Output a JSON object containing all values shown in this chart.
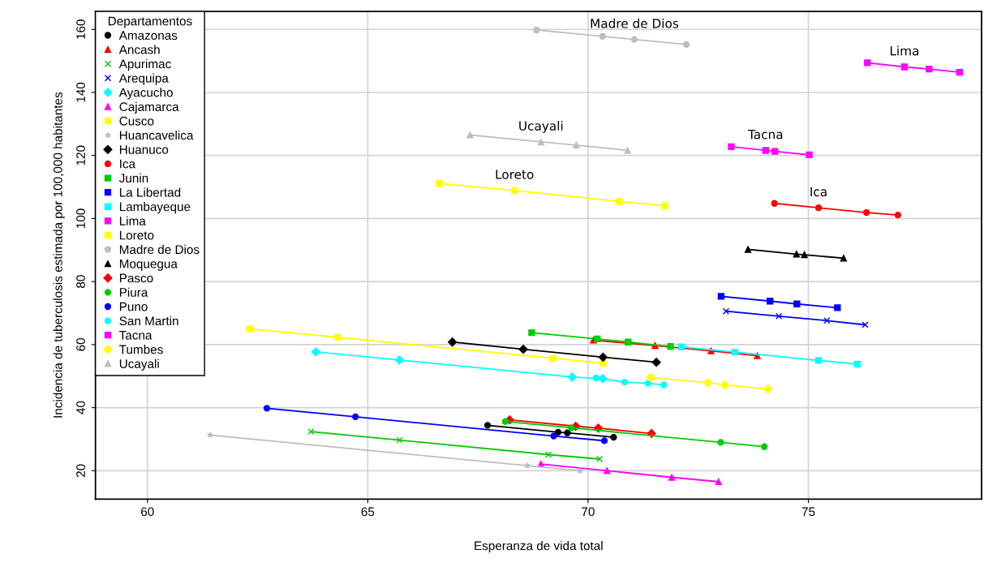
{
  "chart_data": {
    "type": "line",
    "xlabel": "Esperanza de vida total",
    "ylabel": "Incidencia de tuberculosis estimada por 100,000 habitantes",
    "legend_title": "Departamentos",
    "legend": "top left",
    "grid": true,
    "xlim": [
      58.82,
      78.93
    ],
    "ylim": [
      11.0,
      165.7
    ],
    "xticks": [
      60,
      65,
      70,
      75
    ],
    "yticks": [
      20,
      40,
      60,
      80,
      100,
      120,
      140,
      160
    ],
    "series": [
      {
        "name": "Amazonas",
        "color": "#000000",
        "marker": "circle",
        "x": [
          67.72,
          69.32,
          69.53,
          70.58
        ],
        "values": [
          34.4,
          32.2,
          32.0,
          30.6
        ]
      },
      {
        "name": "Ancash",
        "color": "#ff0000",
        "marker": "triangle",
        "x": [
          70.12,
          71.52,
          72.79,
          73.84
        ],
        "values": [
          61.4,
          59.7,
          58.0,
          56.5
        ]
      },
      {
        "name": "Apurimac",
        "color": "#00cd00",
        "marker": "cross",
        "x": [
          63.71,
          65.72,
          69.1,
          70.26
        ],
        "values": [
          32.4,
          29.7,
          25.1,
          23.7
        ]
      },
      {
        "name": "Arequipa",
        "color": "#0000ff",
        "marker": "cross",
        "x": [
          73.13,
          74.33,
          75.42,
          76.29
        ],
        "values": [
          70.6,
          69.0,
          67.6,
          66.3
        ]
      },
      {
        "name": "Ayacucho",
        "color": "#00ffff",
        "marker": "diamond",
        "x": [
          63.82,
          65.72,
          69.64,
          70.33
        ],
        "values": [
          57.7,
          55.1,
          49.7,
          49.2
        ]
      },
      {
        "name": "Cajamarca",
        "color": "#ff00ff",
        "marker": "triangle",
        "x": [
          68.93,
          70.43,
          71.9,
          72.96
        ],
        "values": [
          22.1,
          20.0,
          17.9,
          16.5
        ]
      },
      {
        "name": "Cusco",
        "color": "#ffff00",
        "marker": "square",
        "x": [
          62.32,
          64.32,
          69.2,
          70.34
        ],
        "values": [
          65.0,
          62.3,
          55.7,
          54.1
        ]
      },
      {
        "name": "Huancavelica",
        "color": "#bebebe",
        "marker": "star",
        "x": [
          61.42,
          68.62,
          69.82
        ],
        "values": [
          31.3,
          21.6,
          20.0
        ]
      },
      {
        "name": "Huanuco",
        "color": "#000000",
        "marker": "diamond",
        "x": [
          66.92,
          68.53,
          70.34,
          71.55
        ],
        "values": [
          60.8,
          58.5,
          56.0,
          54.4
        ]
      },
      {
        "name": "Ica",
        "color": "#ff0000",
        "marker": "circle",
        "x": [
          74.23,
          75.23,
          76.32,
          77.03
        ],
        "values": [
          104.8,
          103.4,
          101.9,
          101.1
        ]
      },
      {
        "name": "Junin",
        "color": "#00cd00",
        "marker": "square",
        "x": [
          68.72,
          70.21,
          70.91,
          71.87
        ],
        "values": [
          63.8,
          61.8,
          60.8,
          59.4
        ]
      },
      {
        "name": "La Libertad",
        "color": "#0000ff",
        "marker": "square",
        "x": [
          73.02,
          74.13,
          74.74,
          75.66
        ],
        "values": [
          75.3,
          73.8,
          72.9,
          71.7
        ]
      },
      {
        "name": "Lambayeque",
        "color": "#00ffff",
        "marker": "square",
        "x": [
          72.12,
          73.33,
          75.23,
          76.11
        ],
        "values": [
          59.3,
          57.6,
          55.0,
          53.8
        ]
      },
      {
        "name": "Lima",
        "color": "#ff00ff",
        "marker": "square",
        "x": [
          76.34,
          77.18,
          77.74,
          78.43
        ],
        "values": [
          149.4,
          148.1,
          147.4,
          146.4
        ]
      },
      {
        "name": "Loreto",
        "color": "#ffff00",
        "marker": "square",
        "x": [
          66.62,
          68.33,
          70.71,
          71.75
        ],
        "values": [
          111.1,
          108.9,
          105.4,
          104.0
        ]
      },
      {
        "name": "Madre de Dios",
        "color": "#bebebe",
        "marker": "circle",
        "x": [
          68.83,
          70.33,
          71.05,
          72.23
        ],
        "values": [
          159.8,
          157.8,
          156.8,
          155.2
        ]
      },
      {
        "name": "Moquegua",
        "color": "#000000",
        "marker": "triangle",
        "x": [
          73.63,
          74.73,
          74.91,
          75.8
        ],
        "values": [
          90.2,
          88.7,
          88.5,
          87.4
        ]
      },
      {
        "name": "Pasco",
        "color": "#ff0000",
        "marker": "diamond",
        "x": [
          68.22,
          69.72,
          70.23,
          71.44
        ],
        "values": [
          36.1,
          34.1,
          33.5,
          31.8
        ]
      },
      {
        "name": "Piura",
        "color": "#00cd00",
        "marker": "circle",
        "x": [
          68.12,
          69.62,
          73.01,
          74.0
        ],
        "values": [
          35.6,
          33.6,
          29.0,
          27.6
        ]
      },
      {
        "name": "Puno",
        "color": "#0000ff",
        "marker": "circle",
        "x": [
          62.71,
          64.72,
          69.22,
          70.37
        ],
        "values": [
          39.8,
          37.1,
          31.0,
          29.5
        ]
      },
      {
        "name": "San Martin",
        "color": "#00ffff",
        "marker": "circle",
        "x": [
          70.18,
          70.83,
          71.36,
          71.72
        ],
        "values": [
          49.4,
          48.1,
          47.7,
          47.2
        ]
      },
      {
        "name": "Tacna",
        "color": "#ff00ff",
        "marker": "square",
        "x": [
          73.25,
          74.03,
          74.24,
          75.02
        ],
        "values": [
          122.8,
          121.6,
          121.3,
          120.2
        ]
      },
      {
        "name": "Tumbes",
        "color": "#ffff00",
        "marker": "diamond",
        "x": [
          71.42,
          72.72,
          73.1,
          74.08
        ],
        "values": [
          49.6,
          47.9,
          47.2,
          45.9
        ]
      },
      {
        "name": "Ucayali",
        "color": "#bebebe",
        "marker": "triangle",
        "x": [
          67.32,
          68.93,
          69.73,
          70.9
        ],
        "values": [
          126.5,
          124.3,
          123.3,
          121.6
        ]
      }
    ],
    "annotations": [
      {
        "text": "Madre de Dios",
        "x": 71.05,
        "y": 156.8
      },
      {
        "text": "Ucayali",
        "x": 68.93,
        "y": 124.3
      },
      {
        "text": "Loreto",
        "x": 68.33,
        "y": 108.9
      },
      {
        "text": "Lima",
        "x": 77.18,
        "y": 148.1
      },
      {
        "text": "Tacna",
        "x": 74.03,
        "y": 121.6
      },
      {
        "text": "Ica",
        "x": 75.23,
        "y": 103.4
      }
    ]
  }
}
